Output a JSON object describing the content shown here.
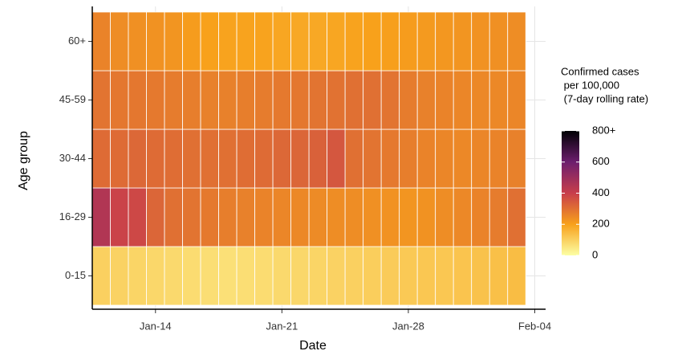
{
  "chart_data": {
    "type": "heatmap",
    "x_label": "Date",
    "y_label": "Age group",
    "x": [
      11,
      12,
      13,
      14,
      15,
      16,
      17,
      18,
      19,
      20,
      21,
      22,
      23,
      24,
      25,
      26,
      27,
      28,
      29,
      30,
      31,
      32,
      33,
      34
    ],
    "xlim": [
      10.5,
      35.6
    ],
    "xticks": [
      {
        "value": 14,
        "label": "Jan-14"
      },
      {
        "value": 21,
        "label": "Jan-21"
      },
      {
        "value": 28,
        "label": "Jan-28"
      },
      {
        "value": 35,
        "label": "Feb-04"
      }
    ],
    "y": [
      "0-15",
      "16-29",
      "30-44",
      "45-59",
      "60+"
    ],
    "values": [
      [
        100,
        95,
        90,
        85,
        80,
        75,
        70,
        65,
        70,
        75,
        80,
        85,
        90,
        95,
        100,
        105,
        110,
        115,
        120,
        120,
        125,
        130,
        135,
        140
      ],
      [
        450,
        390,
        380,
        320,
        300,
        290,
        280,
        270,
        265,
        260,
        255,
        250,
        245,
        240,
        240,
        235,
        230,
        225,
        230,
        240,
        250,
        260,
        275,
        300
      ],
      [
        310,
        310,
        315,
        310,
        305,
        300,
        300,
        300,
        305,
        310,
        315,
        320,
        330,
        350,
        300,
        290,
        280,
        270,
        260,
        255,
        250,
        255,
        260,
        265
      ],
      [
        290,
        285,
        285,
        280,
        275,
        270,
        265,
        265,
        270,
        275,
        280,
        285,
        290,
        295,
        300,
        300,
        290,
        275,
        265,
        260,
        255,
        250,
        250,
        255
      ],
      [
        260,
        240,
        235,
        230,
        225,
        210,
        200,
        195,
        195,
        195,
        190,
        185,
        185,
        190,
        195,
        200,
        205,
        210,
        215,
        220,
        225,
        230,
        235,
        240
      ]
    ],
    "legend_title": [
      "Confirmed cases",
      " per 100,000",
      " (7-day rolling rate)"
    ],
    "zlim": [
      0,
      800
    ],
    "zticks": [
      0,
      200,
      400,
      600,
      {
        "value": 800,
        "label": "800+"
      }
    ],
    "colors": [
      "#fcffa4",
      "#f8a11b",
      "#c83e4b",
      "#6d1e6e",
      "#000004"
    ],
    "grid": true
  }
}
